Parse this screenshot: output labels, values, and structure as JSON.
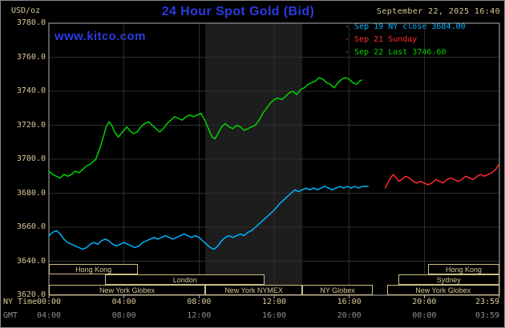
{
  "colors": {
    "background": "#000000",
    "frame": "#8a8a8a",
    "plot_border": "#b0b0b0",
    "grid": "#2d2d2d",
    "band": "#1d1d1d",
    "tan": "#d8c896",
    "gmt_gray": "#8f8f8f",
    "title_blue": "#2b3be0",
    "sep19_cyan": "#00b4ff",
    "sep21_red": "#ff2a2a",
    "sep22_green": "#00d400"
  },
  "header": {
    "unit_label": "USD/oz",
    "title": "24 Hour Spot Gold (Bid)",
    "datetime": "September 22, 2025 16:40",
    "watermark": "www.kitco.com",
    "legend": [
      {
        "label": "Sep 19 NY close 3684.00",
        "color": "#00b4ff"
      },
      {
        "label": "Sep 21 Sunday",
        "color": "#ff2a2a"
      },
      {
        "label": "Sep 22 Last 3746.60",
        "color": "#00d400"
      }
    ]
  },
  "axes": {
    "y_ticks": [
      "3780.0",
      "3760.0",
      "3740.0",
      "3720.0",
      "3700.0",
      "3680.0",
      "3660.0",
      "3640.0",
      "3620.0"
    ],
    "tick_hours": [
      0,
      4,
      8,
      12,
      16,
      20,
      23.983
    ],
    "x_rows": [
      {
        "label": "NY Time",
        "color_key": "tan",
        "ticks": [
          "00:00",
          "04:00",
          "08:00",
          "12:00",
          "16:00",
          "20:00",
          "23:59"
        ]
      },
      {
        "label": "GMT",
        "color_key": "gray",
        "ticks": [
          "04:00",
          "08:00",
          "12:00",
          "16:00",
          "20:00",
          "00:00",
          "03:59"
        ]
      }
    ]
  },
  "sessions": [
    {
      "label": "Hong Kong",
      "row": 0,
      "start": 0,
      "end": 4.75
    },
    {
      "label": "Hong Kong",
      "row": 0,
      "start": 20.2,
      "end": 24
    },
    {
      "label": "London",
      "row": 1,
      "start": 3,
      "end": 11.5
    },
    {
      "label": "Sydney",
      "row": 1,
      "start": 18.6,
      "end": 24
    },
    {
      "label": "New York Globex",
      "row": 2,
      "start": 0,
      "end": 8.33
    },
    {
      "label": "New York NYMEX",
      "row": 2,
      "start": 8.33,
      "end": 13.5
    },
    {
      "label": "NY Globex",
      "row": 2,
      "start": 13.5,
      "end": 17.25
    },
    {
      "label": "New York Globex",
      "row": 2,
      "start": 18,
      "end": 24
    }
  ],
  "chart_data": {
    "type": "line",
    "title": "24 Hour Spot Gold (Bid)",
    "ylabel": "USD/oz",
    "xlabel": "NY Time",
    "ylim": [
      3620,
      3780
    ],
    "y_tick_step": 20,
    "xlim_hours": [
      0,
      24
    ],
    "highlight_band_hours": [
      8.33,
      13.5
    ],
    "x_tick_labels_ny": [
      "00:00",
      "04:00",
      "08:00",
      "12:00",
      "16:00",
      "20:00",
      "23:59"
    ],
    "x_tick_labels_gmt": [
      "04:00",
      "08:00",
      "12:00",
      "16:00",
      "20:00",
      "00:00",
      "03:59"
    ],
    "grid": true,
    "legend_position": "top-right",
    "series": [
      {
        "key": "sep19",
        "name": "Sep 19 NY close 3684.00",
        "color": "#00b4ff",
        "points": [
          [
            0,
            3655
          ],
          [
            0.2,
            3657
          ],
          [
            0.4,
            3658
          ],
          [
            0.6,
            3656
          ],
          [
            0.8,
            3653
          ],
          [
            1,
            3651
          ],
          [
            1.2,
            3650
          ],
          [
            1.4,
            3649
          ],
          [
            1.6,
            3648
          ],
          [
            1.8,
            3647
          ],
          [
            2,
            3648
          ],
          [
            2.2,
            3650
          ],
          [
            2.4,
            3651
          ],
          [
            2.6,
            3650
          ],
          [
            2.8,
            3652
          ],
          [
            3,
            3653
          ],
          [
            3.2,
            3652
          ],
          [
            3.4,
            3650
          ],
          [
            3.6,
            3649
          ],
          [
            3.8,
            3650
          ],
          [
            4,
            3651
          ],
          [
            4.2,
            3650
          ],
          [
            4.4,
            3649
          ],
          [
            4.6,
            3648
          ],
          [
            4.8,
            3649
          ],
          [
            5,
            3651
          ],
          [
            5.2,
            3652
          ],
          [
            5.4,
            3653
          ],
          [
            5.6,
            3654
          ],
          [
            5.8,
            3653
          ],
          [
            6,
            3654
          ],
          [
            6.2,
            3655
          ],
          [
            6.4,
            3654
          ],
          [
            6.6,
            3653
          ],
          [
            6.8,
            3654
          ],
          [
            7,
            3655
          ],
          [
            7.2,
            3656
          ],
          [
            7.4,
            3655
          ],
          [
            7.6,
            3654
          ],
          [
            7.8,
            3655
          ],
          [
            8,
            3654
          ],
          [
            8.2,
            3652
          ],
          [
            8.4,
            3650
          ],
          [
            8.6,
            3648
          ],
          [
            8.8,
            3647
          ],
          [
            9,
            3649
          ],
          [
            9.2,
            3652
          ],
          [
            9.4,
            3654
          ],
          [
            9.6,
            3655
          ],
          [
            9.8,
            3654
          ],
          [
            10,
            3655
          ],
          [
            10.2,
            3656
          ],
          [
            10.4,
            3655
          ],
          [
            10.6,
            3657
          ],
          [
            10.8,
            3658
          ],
          [
            11,
            3660
          ],
          [
            11.2,
            3662
          ],
          [
            11.5,
            3665
          ],
          [
            11.8,
            3668
          ],
          [
            12,
            3670
          ],
          [
            12.3,
            3674
          ],
          [
            12.6,
            3677
          ],
          [
            12.9,
            3680
          ],
          [
            13.1,
            3682
          ],
          [
            13.3,
            3681
          ],
          [
            13.5,
            3682
          ],
          [
            13.7,
            3683
          ],
          [
            13.9,
            3682
          ],
          [
            14.1,
            3683
          ],
          [
            14.3,
            3682
          ],
          [
            14.5,
            3683
          ],
          [
            14.7,
            3684
          ],
          [
            14.9,
            3683
          ],
          [
            15.1,
            3682
          ],
          [
            15.3,
            3683
          ],
          [
            15.5,
            3684
          ],
          [
            15.7,
            3683
          ],
          [
            15.9,
            3684
          ],
          [
            16.1,
            3683
          ],
          [
            16.3,
            3684
          ],
          [
            16.5,
            3683
          ],
          [
            16.7,
            3684
          ],
          [
            17,
            3684
          ]
        ]
      },
      {
        "key": "sep21",
        "name": "Sep 21 Sunday",
        "color": "#ff2a2a",
        "points": [
          [
            17.92,
            3683
          ],
          [
            18.05,
            3686
          ],
          [
            18.2,
            3689
          ],
          [
            18.35,
            3691
          ],
          [
            18.5,
            3689
          ],
          [
            18.65,
            3687
          ],
          [
            18.8,
            3688
          ],
          [
            19,
            3690
          ],
          [
            19.2,
            3689
          ],
          [
            19.4,
            3687
          ],
          [
            19.6,
            3686
          ],
          [
            19.8,
            3687
          ],
          [
            20,
            3686
          ],
          [
            20.2,
            3685
          ],
          [
            20.4,
            3686
          ],
          [
            20.6,
            3688
          ],
          [
            20.8,
            3687
          ],
          [
            21,
            3686
          ],
          [
            21.2,
            3688
          ],
          [
            21.4,
            3689
          ],
          [
            21.6,
            3688
          ],
          [
            21.8,
            3687
          ],
          [
            22,
            3688
          ],
          [
            22.2,
            3690
          ],
          [
            22.4,
            3689
          ],
          [
            22.6,
            3688
          ],
          [
            22.8,
            3690
          ],
          [
            23,
            3691
          ],
          [
            23.2,
            3690
          ],
          [
            23.4,
            3691
          ],
          [
            23.6,
            3692
          ],
          [
            23.8,
            3694
          ],
          [
            23.98,
            3697
          ]
        ]
      },
      {
        "key": "sep22",
        "name": "Sep 22 Last 3746.60",
        "color": "#00d400",
        "points": [
          [
            0,
            3693
          ],
          [
            0.2,
            3691
          ],
          [
            0.4,
            3690
          ],
          [
            0.6,
            3689
          ],
          [
            0.8,
            3691
          ],
          [
            1,
            3690
          ],
          [
            1.2,
            3691
          ],
          [
            1.4,
            3693
          ],
          [
            1.6,
            3692
          ],
          [
            1.8,
            3694
          ],
          [
            2,
            3696
          ],
          [
            2.2,
            3697
          ],
          [
            2.5,
            3700
          ],
          [
            2.7,
            3706
          ],
          [
            2.9,
            3713
          ],
          [
            3.05,
            3719
          ],
          [
            3.2,
            3722
          ],
          [
            3.35,
            3720
          ],
          [
            3.5,
            3716
          ],
          [
            3.7,
            3713
          ],
          [
            3.85,
            3715
          ],
          [
            4,
            3717
          ],
          [
            4.15,
            3719
          ],
          [
            4.3,
            3717
          ],
          [
            4.5,
            3715
          ],
          [
            4.7,
            3716
          ],
          [
            4.9,
            3719
          ],
          [
            5.1,
            3721
          ],
          [
            5.3,
            3722
          ],
          [
            5.5,
            3720
          ],
          [
            5.7,
            3718
          ],
          [
            5.9,
            3716
          ],
          [
            6.1,
            3718
          ],
          [
            6.3,
            3721
          ],
          [
            6.5,
            3723
          ],
          [
            6.7,
            3725
          ],
          [
            6.9,
            3724
          ],
          [
            7.1,
            3723
          ],
          [
            7.3,
            3725
          ],
          [
            7.5,
            3726
          ],
          [
            7.7,
            3725
          ],
          [
            7.9,
            3726
          ],
          [
            8.1,
            3727
          ],
          [
            8.3,
            3723
          ],
          [
            8.5,
            3718
          ],
          [
            8.7,
            3713
          ],
          [
            8.85,
            3712
          ],
          [
            9,
            3715
          ],
          [
            9.2,
            3719
          ],
          [
            9.4,
            3721
          ],
          [
            9.6,
            3719
          ],
          [
            9.8,
            3718
          ],
          [
            10,
            3720
          ],
          [
            10.2,
            3719
          ],
          [
            10.4,
            3717
          ],
          [
            10.6,
            3718
          ],
          [
            10.8,
            3719
          ],
          [
            11,
            3720
          ],
          [
            11.2,
            3723
          ],
          [
            11.4,
            3727
          ],
          [
            11.6,
            3730
          ],
          [
            11.8,
            3733
          ],
          [
            12,
            3735
          ],
          [
            12.2,
            3736
          ],
          [
            12.4,
            3735
          ],
          [
            12.6,
            3737
          ],
          [
            12.8,
            3739
          ],
          [
            13,
            3740
          ],
          [
            13.2,
            3738
          ],
          [
            13.4,
            3741
          ],
          [
            13.6,
            3742
          ],
          [
            13.8,
            3744
          ],
          [
            14,
            3745
          ],
          [
            14.2,
            3746
          ],
          [
            14.4,
            3748
          ],
          [
            14.6,
            3747
          ],
          [
            14.8,
            3745
          ],
          [
            15,
            3744
          ],
          [
            15.2,
            3742
          ],
          [
            15.4,
            3745
          ],
          [
            15.6,
            3747
          ],
          [
            15.8,
            3748
          ],
          [
            16,
            3747
          ],
          [
            16.2,
            3745
          ],
          [
            16.4,
            3744
          ],
          [
            16.55,
            3746
          ],
          [
            16.67,
            3746.6
          ]
        ]
      }
    ]
  }
}
